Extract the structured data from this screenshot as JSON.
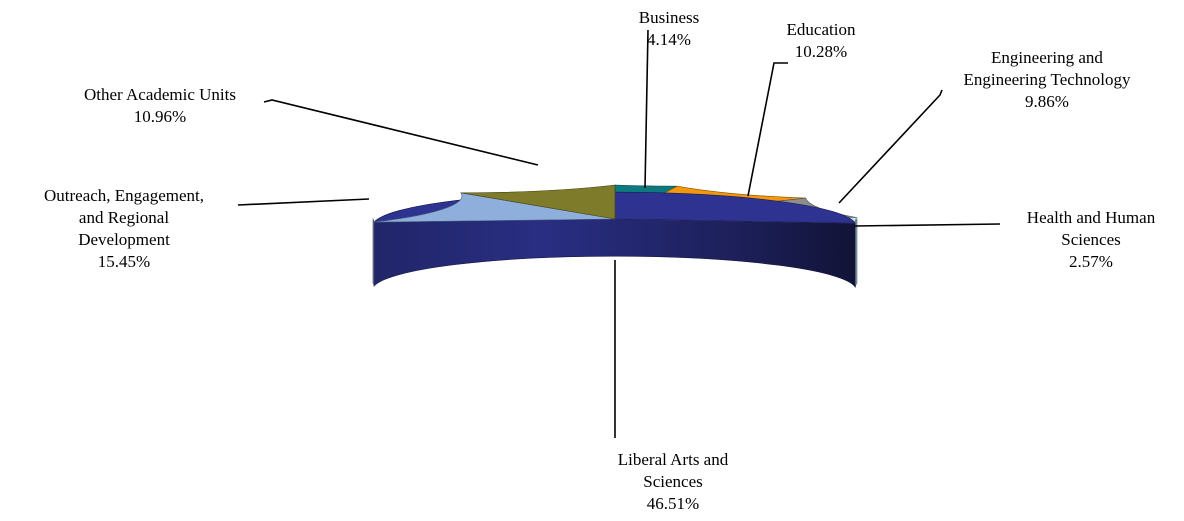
{
  "chart_data": {
    "type": "pie",
    "three_d": true,
    "title": "",
    "slices": [
      {
        "name": "Business",
        "label": [
          "Business",
          "4.14%"
        ],
        "value": 4.14,
        "color": "#0e7a80"
      },
      {
        "name": "Education",
        "label": [
          "Education",
          "10.28%"
        ],
        "value": 10.28,
        "color": "#f5970d"
      },
      {
        "name": "Engineering and Engineering Technology",
        "label": [
          "Engineering and",
          "Engineering Technology",
          "9.86%"
        ],
        "value": 9.86,
        "color": "#8d8d8d"
      },
      {
        "name": "Health and Human Sciences",
        "label": [
          "Health and Human",
          "Sciences",
          "2.57%"
        ],
        "value": 2.57,
        "color": "#c6e9f2"
      },
      {
        "name": "Liberal Arts and Sciences",
        "label": [
          "Liberal Arts and",
          "Sciences",
          "46.51%"
        ],
        "value": 46.51,
        "color": "#2e3391"
      },
      {
        "name": "Outreach, Engagement, and Regional Development",
        "label": [
          "Outreach, Engagement,",
          "and Regional",
          "Development",
          "15.45%"
        ],
        "value": 15.45,
        "color": "#8eaedb"
      },
      {
        "name": "Other Academic Units",
        "label": [
          "Other Academic Units",
          "10.96%"
        ],
        "value": 10.96,
        "color": "#7e7b2b"
      }
    ]
  }
}
